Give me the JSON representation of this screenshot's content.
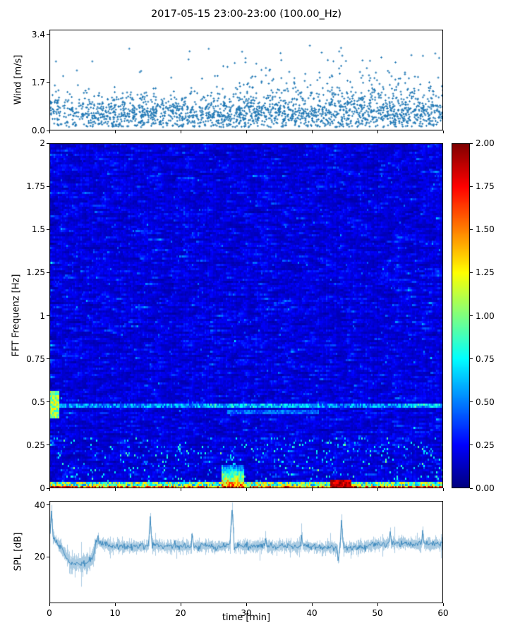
{
  "figure": {
    "title": "2017-05-15 23:00-23:00 (100.00_Hz)",
    "xlabel": "time [min]",
    "background": "#ffffff"
  },
  "chart_data": [
    {
      "type": "scatter",
      "name": "wind",
      "ylabel": "Wind [m/s]",
      "xlim": [
        0,
        60
      ],
      "ylim": [
        0,
        3.57
      ],
      "yticks": [
        {
          "v": 0.0,
          "label": "0.0"
        },
        {
          "v": 1.7,
          "label": "1.7"
        },
        {
          "v": 3.4,
          "label": "3.4"
        }
      ],
      "marker_color": "#1f77b4",
      "n_points": 2100,
      "seed": 11,
      "distribution": {
        "floor": 0.12,
        "center": 0.5,
        "spread": 0.32,
        "high_tail_prob_early": 0.06,
        "high_tail_prob_late": 0.15,
        "late_start_t": 28,
        "y_max": 3.45
      }
    },
    {
      "type": "heatmap",
      "name": "spectrogram",
      "ylabel": "FFT Frequenz [Hz]",
      "xlim": [
        0,
        60
      ],
      "ylim": [
        0,
        2
      ],
      "yticks": [
        {
          "v": 0,
          "label": "0"
        },
        {
          "v": 0.25,
          "label": "0.25"
        },
        {
          "v": 0.5,
          "label": "0.5"
        },
        {
          "v": 0.75,
          "label": "0.75"
        },
        {
          "v": 1,
          "label": "1"
        },
        {
          "v": 1.25,
          "label": "1.25"
        },
        {
          "v": 1.5,
          "label": "1.5"
        },
        {
          "v": 1.75,
          "label": "1.75"
        },
        {
          "v": 2,
          "label": "2"
        }
      ],
      "colormap": "jet",
      "vmin": 0,
      "vmax": 2,
      "colorbar_ticks": [
        {
          "v": 0.0,
          "label": "0.00"
        },
        {
          "v": 0.25,
          "label": "0.25"
        },
        {
          "v": 0.5,
          "label": "0.50"
        },
        {
          "v": 0.75,
          "label": "0.75"
        },
        {
          "v": 1.0,
          "label": "1.00"
        },
        {
          "v": 1.25,
          "label": "1.25"
        },
        {
          "v": 1.5,
          "label": "1.50"
        },
        {
          "v": 1.75,
          "label": "1.75"
        },
        {
          "v": 2.0,
          "label": "2.00"
        }
      ],
      "seed": 5,
      "noise": {
        "base": 0.03,
        "mean": 0.16,
        "persistence": 0.72
      },
      "features": {
        "bottom_band": {
          "f_max": 0.035,
          "v_lo": 0.5,
          "v_hi": 1.4
        },
        "bottom_row": {
          "f_max": 0.013,
          "v_lo": 0.9,
          "v_hi": 2.0
        },
        "left_bottom": {
          "t_max": 3,
          "f_max": 0.013,
          "v_lo": 1.5,
          "v_hi": 2.0
        },
        "hline_main": {
          "f": 0.48,
          "hw": 0.012,
          "v_lo": 0.3,
          "v_hi": 0.75,
          "boost_t": [
            24,
            41
          ],
          "boost": 0.2,
          "boost2_t": [
            54,
            60
          ],
          "boost2": 0.25
        },
        "hline_secondary": {
          "f": 0.44,
          "hw": 0.008,
          "t": [
            27,
            41
          ],
          "v_lo": 0.3,
          "v_hi": 0.6
        },
        "hotspot_mid": {
          "t": [
            26.2,
            29.6
          ],
          "f_max": 0.14,
          "v_peak": 1.6,
          "f_decay": 9
        },
        "hotspot_right": {
          "t": [
            42.8,
            46.0
          ],
          "f_max": 0.05,
          "v_lo": 1.7,
          "v_hi": 2.0
        },
        "left_column": {
          "t_max": 1.6,
          "f_lo": 0.4,
          "f_hi": 0.56,
          "v_lo": 0.8,
          "v_hi": 1.3
        },
        "low_speckle": {
          "f_max": 0.3,
          "prob": 0.07,
          "add_lo": 0.2,
          "add_hi": 0.7
        }
      }
    },
    {
      "type": "line",
      "name": "spl",
      "ylabel": "SPL [dB]",
      "xlabel": "time [min]",
      "xlim": [
        0,
        60
      ],
      "ylim": [
        2,
        41.6
      ],
      "yticks": [
        {
          "v": 20,
          "label": "20"
        },
        {
          "v": 40,
          "label": "40"
        }
      ],
      "xticks": [
        {
          "v": 0,
          "label": "0"
        },
        {
          "v": 10,
          "label": "10"
        },
        {
          "v": 20,
          "label": "20"
        },
        {
          "v": 30,
          "label": "30"
        },
        {
          "v": 40,
          "label": "40"
        },
        {
          "v": 50,
          "label": "50"
        },
        {
          "v": 60,
          "label": "60"
        }
      ],
      "line_color": "#1f77b4",
      "seed": 3,
      "baseline": [
        [
          0,
          29
        ],
        [
          0.8,
          27
        ],
        [
          2.3,
          22
        ],
        [
          3.2,
          18
        ],
        [
          5,
          17.5
        ],
        [
          6.6,
          19
        ],
        [
          7.1,
          25
        ],
        [
          10,
          24
        ],
        [
          15,
          24
        ],
        [
          20,
          24
        ],
        [
          25,
          24
        ],
        [
          30,
          24
        ],
        [
          35,
          24
        ],
        [
          40,
          24
        ],
        [
          44,
          23
        ],
        [
          48,
          24
        ],
        [
          52,
          25
        ],
        [
          56,
          25
        ],
        [
          60,
          25
        ]
      ],
      "spikes": [
        [
          0.3,
          38
        ],
        [
          7.4,
          29
        ],
        [
          15.4,
          35
        ],
        [
          21.8,
          30
        ],
        [
          27.9,
          39
        ],
        [
          33,
          29
        ],
        [
          38.5,
          30
        ],
        [
          44.6,
          34
        ],
        [
          52,
          31
        ],
        [
          57,
          31
        ]
      ],
      "drops": [
        [
          44.1,
          17
        ]
      ],
      "noise": {
        "wander": 1.1,
        "fuzz": 2.0,
        "dip_fuzz": 3.2,
        "dip_range": [
          2.6,
          6.9
        ],
        "jitter": 0.55
      }
    }
  ]
}
